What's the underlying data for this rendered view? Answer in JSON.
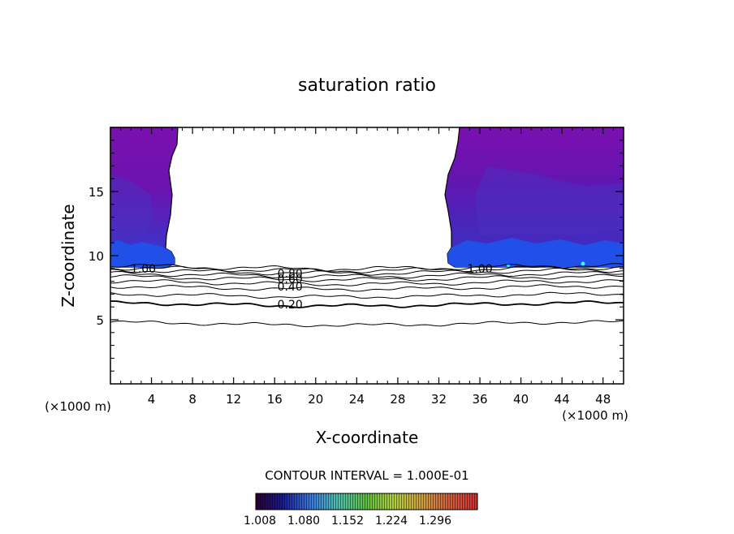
{
  "chart_data": {
    "type": "contour",
    "title": "saturation ratio",
    "xlabel": "X-coordinate",
    "ylabel": "Z-coordinate",
    "x_unit": "(×1000 m)",
    "y_unit": "(×1000 m)",
    "xlim": [
      0,
      50
    ],
    "ylim": [
      0,
      20
    ],
    "x_ticks": [
      4,
      8,
      12,
      16,
      20,
      24,
      28,
      32,
      36,
      40,
      44,
      48
    ],
    "y_ticks": [
      5,
      10,
      15
    ],
    "contour_interval_text": "CONTOUR INTERVAL = 1.000E-01",
    "contour_labels": [
      {
        "text": "1.00",
        "x": 3.2,
        "z": 9.0
      },
      {
        "text": "0.80",
        "x": 17.5,
        "z": 8.6
      },
      {
        "text": "0.60",
        "x": 17.5,
        "z": 8.2
      },
      {
        "text": "0.40",
        "x": 17.5,
        "z": 7.6
      },
      {
        "text": "0.20",
        "x": 17.5,
        "z": 6.2
      },
      {
        "text": "1.00",
        "x": 36.0,
        "z": 9.0
      }
    ],
    "contour_levels": [
      {
        "value": 0.1,
        "z": 4.7
      },
      {
        "value": 0.2,
        "z": 6.2
      },
      {
        "value": 0.3,
        "z": 6.9
      },
      {
        "value": 0.4,
        "z": 7.5
      },
      {
        "value": 0.5,
        "z": 7.9
      },
      {
        "value": 0.6,
        "z": 8.25
      },
      {
        "value": 0.7,
        "z": 8.5
      },
      {
        "value": 0.8,
        "z": 8.75
      },
      {
        "value": 0.9,
        "z": 8.95
      },
      {
        "value": 1.0,
        "z": 9.1
      }
    ],
    "supersaturated_regions": [
      {
        "x_range": [
          0,
          6.5
        ],
        "z_range": [
          9.1,
          20
        ]
      },
      {
        "x_range": [
          32.6,
          50
        ],
        "z_range": [
          9.1,
          20
        ]
      }
    ],
    "colorbar": {
      "tick_labels": [
        "1.008",
        "1.080",
        "1.152",
        "1.224",
        "1.296"
      ],
      "colors": [
        "#2a0030",
        "#1a1a90",
        "#3a7ae0",
        "#50c0b0",
        "#60c040",
        "#b0d040",
        "#d0a040",
        "#d06040",
        "#d03030"
      ]
    }
  }
}
